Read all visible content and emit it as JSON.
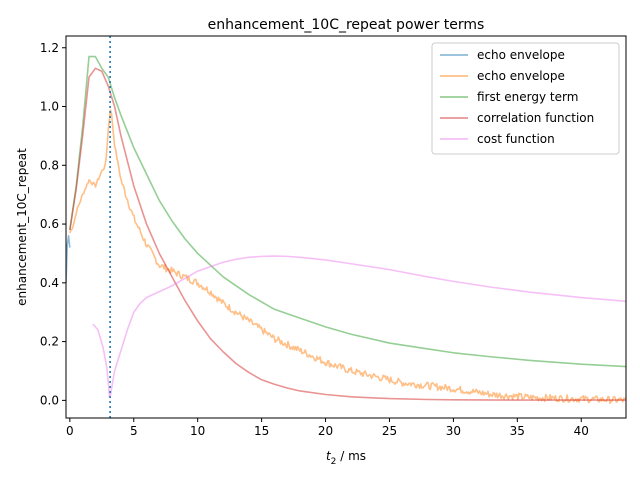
{
  "chart_data": {
    "type": "line",
    "title": "enhancement_10C_repeat power terms",
    "xlabel_main": "t",
    "xlabel_sub": "2",
    "xlabel_unit": " / ms",
    "ylabel": "enhancement_10C_repeat",
    "xlim": [
      -0.3,
      43.5
    ],
    "ylim": [
      -0.06,
      1.24
    ],
    "xticks": [
      0,
      5,
      10,
      15,
      20,
      25,
      30,
      35,
      40
    ],
    "xtick_labels": [
      "0",
      "5",
      "10",
      "15",
      "20",
      "25",
      "30",
      "35",
      "40"
    ],
    "yticks": [
      0.0,
      0.2,
      0.4,
      0.6,
      0.8,
      1.0,
      1.2
    ],
    "ytick_labels": [
      "0.0",
      "0.2",
      "0.4",
      "0.6",
      "0.8",
      "1.0",
      "1.2"
    ],
    "grid": false,
    "legend_position": "top-right",
    "vline": {
      "x": 3.15,
      "color": "#1f77b4",
      "style": "dotted"
    },
    "series": [
      {
        "name": "echo envelope",
        "color": "#1f77b4",
        "opacity": 0.5,
        "x": [
          -0.3,
          -0.2,
          -0.1,
          0.0
        ],
        "y": [
          0.4,
          0.53,
          0.56,
          0.52
        ]
      },
      {
        "name": "echo envelope",
        "color": "#ff7f0e",
        "opacity": 0.5,
        "noisy": true,
        "x": [
          0.0,
          0.3,
          0.5,
          1.0,
          1.5,
          2.0,
          2.5,
          2.8,
          3.0,
          3.2,
          3.5,
          4.0,
          5.0,
          6.0,
          7.0,
          8.0,
          9.0,
          10.0,
          11.0,
          12.0,
          13.0,
          14.0,
          15.0,
          16.0,
          17.0,
          18.0,
          19.0,
          20.0,
          22.0,
          24.0,
          26.0,
          28.0,
          30.0,
          33.0,
          36.0,
          40.0,
          43.5
        ],
        "y": [
          0.57,
          0.6,
          0.64,
          0.7,
          0.75,
          0.73,
          0.78,
          0.8,
          0.92,
          1.0,
          0.87,
          0.75,
          0.62,
          0.53,
          0.46,
          0.44,
          0.42,
          0.4,
          0.37,
          0.33,
          0.3,
          0.27,
          0.24,
          0.21,
          0.19,
          0.17,
          0.15,
          0.13,
          0.1,
          0.08,
          0.06,
          0.05,
          0.04,
          0.02,
          0.01,
          0.005,
          0.0
        ]
      },
      {
        "name": "first energy term",
        "color": "#2ca02c",
        "opacity": 0.5,
        "x": [
          0.0,
          0.5,
          1.0,
          1.5,
          2.0,
          2.5,
          3.0,
          3.5,
          4.0,
          5.0,
          6.0,
          7.0,
          8.0,
          9.0,
          10.0,
          12.0,
          14.0,
          16.0,
          18.0,
          20.0,
          22.0,
          25.0,
          28.0,
          30.0,
          33.0,
          36.0,
          40.0,
          43.5
        ],
        "y": [
          0.58,
          0.73,
          0.93,
          1.17,
          1.17,
          1.13,
          1.1,
          1.03,
          0.97,
          0.86,
          0.77,
          0.68,
          0.61,
          0.55,
          0.5,
          0.42,
          0.36,
          0.31,
          0.28,
          0.25,
          0.225,
          0.195,
          0.175,
          0.162,
          0.148,
          0.136,
          0.123,
          0.115
        ]
      },
      {
        "name": "correlation function",
        "color": "#d62728",
        "opacity": 0.5,
        "x": [
          0.0,
          0.5,
          1.0,
          1.5,
          2.0,
          2.5,
          3.0,
          3.5,
          4.0,
          5.0,
          6.0,
          7.0,
          8.0,
          9.0,
          10.0,
          11.0,
          12.0,
          13.0,
          14.0,
          15.0,
          16.0,
          17.0,
          18.0,
          20.0,
          22.0,
          25.0,
          28.0,
          30.0,
          35.0,
          40.0,
          43.5
        ],
        "y": [
          0.58,
          0.72,
          0.9,
          1.1,
          1.13,
          1.12,
          1.07,
          1.0,
          0.9,
          0.73,
          0.6,
          0.5,
          0.42,
          0.34,
          0.27,
          0.21,
          0.165,
          0.125,
          0.095,
          0.07,
          0.055,
          0.042,
          0.032,
          0.02,
          0.012,
          0.006,
          0.003,
          0.002,
          0.001,
          0.001,
          0.001
        ]
      },
      {
        "name": "cost function",
        "color": "#ee82ee",
        "opacity": 0.5,
        "x": [
          1.8,
          2.2,
          2.6,
          2.9,
          3.05,
          3.1,
          3.2,
          3.3,
          3.5,
          4.0,
          4.5,
          5.0,
          5.5,
          6.0,
          7.0,
          8.0,
          9.0,
          10.0,
          11.0,
          12.0,
          13.0,
          14.0,
          15.0,
          16.0,
          17.0,
          18.0,
          20.0,
          22.0,
          25.0,
          28.0,
          30.0,
          33.0,
          36.0,
          40.0,
          43.5
        ],
        "y": [
          0.26,
          0.24,
          0.18,
          0.11,
          0.04,
          0.01,
          0.02,
          0.05,
          0.1,
          0.17,
          0.24,
          0.3,
          0.33,
          0.35,
          0.37,
          0.39,
          0.415,
          0.44,
          0.455,
          0.47,
          0.48,
          0.487,
          0.49,
          0.491,
          0.49,
          0.487,
          0.478,
          0.465,
          0.445,
          0.42,
          0.405,
          0.385,
          0.368,
          0.35,
          0.337
        ]
      }
    ]
  }
}
